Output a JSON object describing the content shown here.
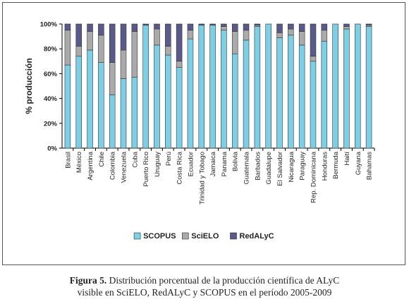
{
  "chart_data": {
    "type": "bar",
    "stacked": true,
    "ylabel": "% producción",
    "ylim": [
      0,
      100
    ],
    "yticks": [
      "0%",
      "20%",
      "40%",
      "60%",
      "80%",
      "100%"
    ],
    "categories": [
      "Brasil",
      "México",
      "Argentina",
      "Chile",
      "Colombia",
      "Venezuela",
      "Cuba",
      "Puerto Rico",
      "Uruguay",
      "Perú",
      "Costa Rica",
      "Ecuador",
      "Trinidad y Tobago",
      "Jamaica",
      "Panama",
      "Bolivia",
      "Guatemala",
      "Barbados",
      "Guadalupe",
      "El Salvador",
      "Nicaragua",
      "Paraguay",
      "Rep. Dominicana",
      "Honduras",
      "Bermuda",
      "Haití",
      "Guyana",
      "Bahamas"
    ],
    "series": [
      {
        "name": "SCOPUS",
        "color": "#7dcfe6",
        "values": [
          67,
          74,
          79,
          69,
          43,
          56,
          57,
          99,
          83,
          75,
          65,
          88,
          99,
          99,
          95,
          76,
          87,
          98,
          100,
          89,
          91,
          83,
          70,
          86,
          100,
          96,
          100,
          98
        ]
      },
      {
        "name": "SciELO",
        "color": "#aaaaaa",
        "values": [
          28,
          8,
          15,
          22,
          26,
          23,
          37,
          0,
          13,
          7,
          5,
          7,
          0,
          0,
          3,
          18,
          8,
          1,
          0,
          4,
          5,
          11,
          4,
          9,
          0,
          2,
          0,
          1
        ]
      },
      {
        "name": "RedALyC",
        "color": "#5a5a8a",
        "values": [
          5,
          18,
          6,
          9,
          31,
          21,
          6,
          1,
          4,
          18,
          30,
          5,
          1,
          1,
          2,
          6,
          5,
          1,
          0,
          7,
          4,
          6,
          26,
          5,
          0,
          2,
          0,
          1
        ]
      }
    ],
    "legend_position": "bottom",
    "grid": false
  },
  "caption": {
    "label": "Figura 5.",
    "line1": "Distribución porcentual de la producción científica de ALyC",
    "line2": "visible en SciELO, RedALyC y SCOPUS en el período 2005-2009"
  }
}
